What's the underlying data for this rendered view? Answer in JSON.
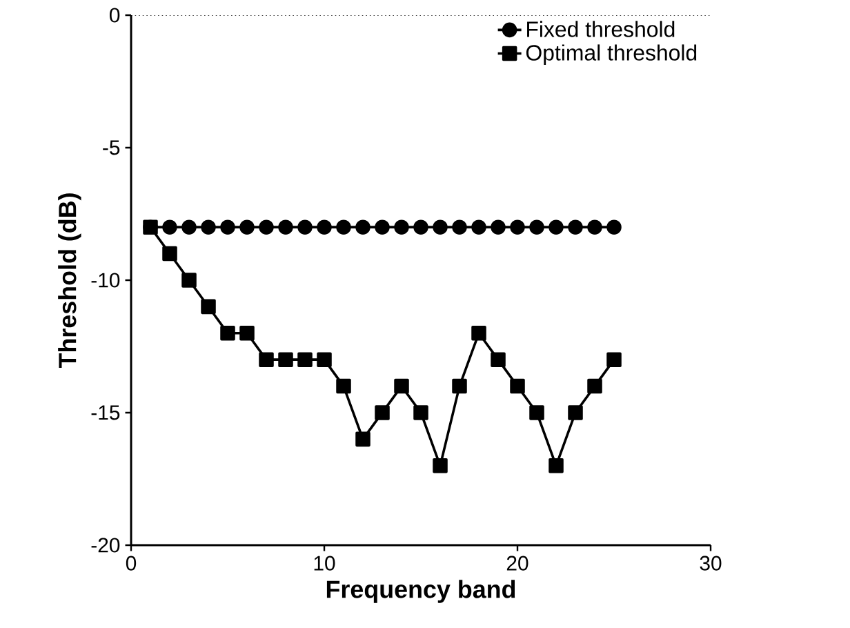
{
  "chart_data": {
    "type": "line",
    "xlabel": "Frequency band",
    "ylabel": "Threshold  (dB)",
    "x": [
      1,
      2,
      3,
      4,
      5,
      6,
      7,
      8,
      9,
      10,
      11,
      12,
      13,
      14,
      15,
      16,
      17,
      18,
      19,
      20,
      21,
      22,
      23,
      24,
      25
    ],
    "series": [
      {
        "name": "Fixed threshold",
        "color": "#000000",
        "marker": "circle",
        "values": [
          -8,
          -8,
          -8,
          -8,
          -8,
          -8,
          -8,
          -8,
          -8,
          -8,
          -8,
          -8,
          -8,
          -8,
          -8,
          -8,
          -8,
          -8,
          -8,
          -8,
          -8,
          -8,
          -8,
          -8,
          -8
        ]
      },
      {
        "name": "Optimal threshold",
        "color": "#000000",
        "marker": "square",
        "values": [
          -8,
          -9,
          -10,
          -11,
          -12,
          -12,
          -13,
          -13,
          -13,
          -13,
          -14,
          -16,
          -15,
          -14,
          -15,
          -17,
          -14,
          -12,
          -13,
          -14,
          -15,
          -17,
          -15,
          -14,
          -13
        ]
      }
    ],
    "xlim": [
      0,
      30
    ],
    "xticks": [
      0,
      10,
      20,
      30
    ],
    "ylim": [
      -20,
      0
    ],
    "yticks": [
      -20,
      -15,
      -10,
      -5,
      0
    ],
    "ref_lines": [
      {
        "axis": "y",
        "value": 0,
        "line_style": "dotted",
        "color": "#000000"
      }
    ],
    "legend": "top right",
    "line_style": "solid",
    "grid": false
  }
}
